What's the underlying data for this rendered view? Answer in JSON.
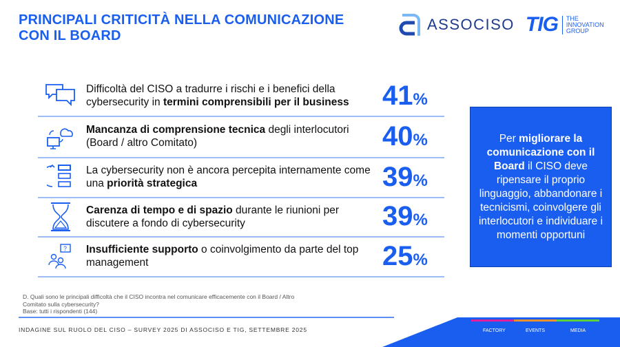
{
  "title": [
    "PRINCIPALI CRITICITÀ NELLA COMUNICAZIONE",
    "CON IL BOARD"
  ],
  "logos": {
    "associso": "ASSOCISO",
    "tig": "TIG",
    "tig_sub": [
      "THE",
      "INNOVATION",
      "GROUP"
    ]
  },
  "rows": [
    {
      "icon": "chat-bubbles-icon",
      "pre": "Difficoltà del CISO a tradurre i rischi e i benefici della cybersecurity in ",
      "bold": "termini comprensibili per il business",
      "post": "",
      "value": "41",
      "unit": "%"
    },
    {
      "icon": "cloud-computer-icon",
      "pre": "",
      "bold": "Mancanza di comprensione tecnica",
      "post": " degli interlocutori (Board / altro Comitato)",
      "value": "40",
      "unit": "%"
    },
    {
      "icon": "priority-list-icon",
      "pre": "La cybersecurity non è ancora percepita internamente come una ",
      "bold": "priorità strategica",
      "post": "",
      "value": "39",
      "unit": "%"
    },
    {
      "icon": "hourglass-icon",
      "pre": "",
      "bold": "Carenza di tempo e di spazio",
      "post": " durante le riunioni per discutere a fondo di cybersecurity",
      "value": "39",
      "unit": "%"
    },
    {
      "icon": "people-question-icon",
      "pre": "",
      "bold": "Insufficiente supporto",
      "post": " o coinvolgimento da parte del top management",
      "value": "25",
      "unit": "%"
    }
  ],
  "box": {
    "pre": "Per ",
    "bold": "migliorare la comunicazione con il Board",
    "post": " il CISO deve ripensare il proprio linguaggio, abbandonare i tecnicismi, coinvolgere gli interlocutori e individuare i momenti opportuni"
  },
  "note": [
    "D. Quali sono le principali difficoltà che il CISO incontra nel comunicare efficacemente con il Board / Altro Comitato sulla cybersecurity?",
    "Base: tutti i rispondenti (144)"
  ],
  "footer": "INDAGINE SUL RUOLO DEL CISO – SURVEY 2025 DI ASSOCISO E TIG, SETTEMBRE 2025",
  "footer_tabs": [
    {
      "label": "FACTORY",
      "color": "#e0209a"
    },
    {
      "label": "EVENTS",
      "color": "#f0902a"
    },
    {
      "label": "MEDIA",
      "color": "#5ad03a"
    }
  ],
  "colors": {
    "accent": "#1a5ef0"
  }
}
